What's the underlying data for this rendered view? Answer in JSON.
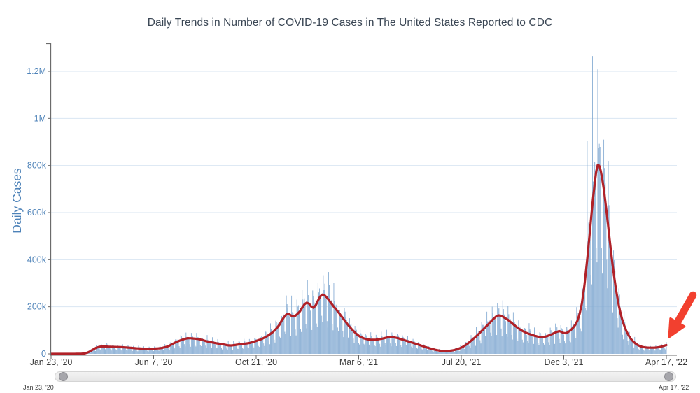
{
  "chart_data": {
    "type": "bar",
    "title": "Daily Trends in Number of COVID-19 Cases in The United States Reported to CDC",
    "xlabel": "",
    "ylabel": "Daily Cases",
    "ylim": [
      0,
      1300000
    ],
    "grid": "horizontal",
    "legend": "none",
    "x_range_days": 816,
    "x_tick_days": [
      0,
      136,
      272,
      408,
      544,
      680,
      816
    ],
    "x_tick_labels": [
      "Jan 23, '20",
      "Jun 7, '20",
      "Oct 21, '20",
      "Mar 6, '21",
      "Jul 20, '21",
      "Dec 3, '21",
      "Apr 17, '22"
    ],
    "y_tick_values": [
      0,
      200000,
      400000,
      600000,
      800000,
      1000000,
      1200000
    ],
    "y_tick_labels": [
      "0",
      "200k",
      "400k",
      "600k",
      "800k",
      "1M",
      "1.2M"
    ],
    "series": [
      {
        "name": "daily-cases-bars",
        "type": "bar",
        "color": "#83aad2",
        "note": "daily reported cases; synthesized from moving average x weekly reporting pattern",
        "weekly_pattern_sun_to_sat": [
          0.5,
          1.4,
          1.2,
          1.1,
          1.04,
          0.98,
          0.62
        ],
        "noise_amplitude": 0.2,
        "start_weekday_index": 4,
        "spike_overrides": {
          "711": 905000,
          "718": 1265000,
          "732": 1015000
        }
      },
      {
        "name": "seven-day-moving-average",
        "type": "line",
        "color": "#b02128",
        "width": 3.2,
        "keypoints_day_value": [
          [
            0,
            0
          ],
          [
            30,
            60
          ],
          [
            38,
            300
          ],
          [
            44,
            1500
          ],
          [
            48,
            5000
          ],
          [
            52,
            11000
          ],
          [
            56,
            19000
          ],
          [
            60,
            26000
          ],
          [
            64,
            30000
          ],
          [
            68,
            31500
          ],
          [
            73,
            31000
          ],
          [
            78,
            30000
          ],
          [
            84,
            29500
          ],
          [
            90,
            29000
          ],
          [
            96,
            28000
          ],
          [
            102,
            26500
          ],
          [
            108,
            25000
          ],
          [
            114,
            23200
          ],
          [
            120,
            22400
          ],
          [
            126,
            21500
          ],
          [
            131,
            21200
          ],
          [
            136,
            21800
          ],
          [
            141,
            23000
          ],
          [
            146,
            24500
          ],
          [
            151,
            28000
          ],
          [
            156,
            33000
          ],
          [
            161,
            42000
          ],
          [
            166,
            50000
          ],
          [
            171,
            56500
          ],
          [
            176,
            62000
          ],
          [
            181,
            66500
          ],
          [
            186,
            66000
          ],
          [
            191,
            64500
          ],
          [
            196,
            62500
          ],
          [
            201,
            58500
          ],
          [
            206,
            53500
          ],
          [
            211,
            50000
          ],
          [
            216,
            47000
          ],
          [
            221,
            44000
          ],
          [
            226,
            41500
          ],
          [
            231,
            38500
          ],
          [
            235,
            36000
          ],
          [
            239,
            35500
          ],
          [
            244,
            37500
          ],
          [
            249,
            40000
          ],
          [
            254,
            42500
          ],
          [
            259,
            44000
          ],
          [
            264,
            46500
          ],
          [
            269,
            51000
          ],
          [
            274,
            57000
          ],
          [
            279,
            62500
          ],
          [
            284,
            70500
          ],
          [
            289,
            80000
          ],
          [
            294,
            92000
          ],
          [
            299,
            108000
          ],
          [
            303,
            124000
          ],
          [
            306,
            142000
          ],
          [
            309,
            156000
          ],
          [
            312,
            167000
          ],
          [
            315,
            170500
          ],
          [
            318,
            163000
          ],
          [
            321,
            158500
          ],
          [
            324,
            162000
          ],
          [
            327,
            170000
          ],
          [
            330,
            180000
          ],
          [
            333,
            196000
          ],
          [
            336,
            210000
          ],
          [
            339,
            217000
          ],
          [
            342,
            213500
          ],
          [
            345,
            201000
          ],
          [
            348,
            195500
          ],
          [
            351,
            206000
          ],
          [
            354,
            226000
          ],
          [
            357,
            244000
          ],
          [
            360,
            252000
          ],
          [
            363,
            248000
          ],
          [
            366,
            238000
          ],
          [
            369,
            226000
          ],
          [
            372,
            213000
          ],
          [
            375,
            200000
          ],
          [
            380,
            181000
          ],
          [
            385,
            160000
          ],
          [
            390,
            139000
          ],
          [
            395,
            118500
          ],
          [
            400,
            100000
          ],
          [
            405,
            84500
          ],
          [
            410,
            72500
          ],
          [
            415,
            65500
          ],
          [
            420,
            61500
          ],
          [
            425,
            59500
          ],
          [
            430,
            60000
          ],
          [
            435,
            62000
          ],
          [
            440,
            65000
          ],
          [
            445,
            69000
          ],
          [
            450,
            71500
          ],
          [
            455,
            70000
          ],
          [
            460,
            66500
          ],
          [
            465,
            61500
          ],
          [
            470,
            56500
          ],
          [
            475,
            51500
          ],
          [
            480,
            46500
          ],
          [
            485,
            41500
          ],
          [
            490,
            36000
          ],
          [
            495,
            30500
          ],
          [
            500,
            25500
          ],
          [
            505,
            21000
          ],
          [
            510,
            17000
          ],
          [
            515,
            13800
          ],
          [
            519,
            12000
          ],
          [
            523,
            11600
          ],
          [
            527,
            12300
          ],
          [
            531,
            14000
          ],
          [
            535,
            16500
          ],
          [
            539,
            20000
          ],
          [
            543,
            25000
          ],
          [
            547,
            31500
          ],
          [
            551,
            40000
          ],
          [
            555,
            50000
          ],
          [
            559,
            61000
          ],
          [
            563,
            72000
          ],
          [
            567,
            84000
          ],
          [
            571,
            97000
          ],
          [
            575,
            110000
          ],
          [
            579,
            123000
          ],
          [
            583,
            136000
          ],
          [
            587,
            149000
          ],
          [
            590,
            158000
          ],
          [
            593,
            163500
          ],
          [
            596,
            162500
          ],
          [
            599,
            158000
          ],
          [
            602,
            152000
          ],
          [
            605,
            146000
          ],
          [
            608,
            139000
          ],
          [
            611,
            131000
          ],
          [
            614,
            123000
          ],
          [
            617,
            115000
          ],
          [
            620,
            108000
          ],
          [
            623,
            101500
          ],
          [
            626,
            96000
          ],
          [
            629,
            91000
          ],
          [
            632,
            87000
          ],
          [
            635,
            83500
          ],
          [
            638,
            80000
          ],
          [
            641,
            77000
          ],
          [
            644,
            74500
          ],
          [
            647,
            72500
          ],
          [
            650,
            71500
          ],
          [
            653,
            71800
          ],
          [
            656,
            73500
          ],
          [
            659,
            76500
          ],
          [
            662,
            80500
          ],
          [
            665,
            84500
          ],
          [
            668,
            89000
          ],
          [
            671,
            93500
          ],
          [
            674,
            96500
          ],
          [
            677,
            93000
          ],
          [
            680,
            88000
          ],
          [
            683,
            87500
          ],
          [
            686,
            93000
          ],
          [
            689,
            100000
          ],
          [
            692,
            110000
          ],
          [
            695,
            122000
          ],
          [
            698,
            140000
          ],
          [
            701,
            170000
          ],
          [
            704,
            215000
          ],
          [
            707,
            282000
          ],
          [
            709,
            340000
          ],
          [
            711,
            400000
          ],
          [
            713,
            465000
          ],
          [
            715,
            535000
          ],
          [
            717,
            605000
          ],
          [
            719,
            668000
          ],
          [
            721,
            725000
          ],
          [
            723,
            775000
          ],
          [
            725,
            803000
          ],
          [
            727,
            799000
          ],
          [
            729,
            777000
          ],
          [
            731,
            742000
          ],
          [
            733,
            700000
          ],
          [
            735,
            650000
          ],
          [
            737,
            595000
          ],
          [
            739,
            538000
          ],
          [
            741,
            480000
          ],
          [
            743,
            424000
          ],
          [
            745,
            371000
          ],
          [
            747,
            322000
          ],
          [
            749,
            278000
          ],
          [
            751,
            239000
          ],
          [
            753,
            205000
          ],
          [
            755,
            176000
          ],
          [
            757,
            151000
          ],
          [
            759,
            130000
          ],
          [
            761,
            112000
          ],
          [
            763,
            96500
          ],
          [
            765,
            83500
          ],
          [
            767,
            72500
          ],
          [
            769,
            63500
          ],
          [
            771,
            56000
          ],
          [
            773,
            49500
          ],
          [
            775,
            44000
          ],
          [
            777,
            39500
          ],
          [
            779,
            36000
          ],
          [
            781,
            33000
          ],
          [
            783,
            30800
          ],
          [
            785,
            29000
          ],
          [
            787,
            27800
          ],
          [
            789,
            27000
          ],
          [
            791,
            26500
          ],
          [
            793,
            26200
          ],
          [
            795,
            26000
          ],
          [
            797,
            26000
          ],
          [
            799,
            26200
          ],
          [
            801,
            26500
          ],
          [
            803,
            27000
          ],
          [
            805,
            27800
          ],
          [
            807,
            29000
          ],
          [
            809,
            30500
          ],
          [
            811,
            32300
          ],
          [
            813,
            34300
          ],
          [
            816,
            37000
          ]
        ]
      }
    ],
    "annotation": {
      "type": "arrow",
      "color": "#f2402f",
      "points_at": "latest data point near Apr 17, '22"
    },
    "colors": {
      "grid_line": "#d9e6f2",
      "y_axis_line": "#6b6b6b",
      "x_axis_line": "#8a8a8a",
      "tick_mark": "#666666",
      "y_tick_label": "#4d82b8",
      "x_tick_label": "#3c3c3c",
      "axis_title": "#4d82b8",
      "title": "#3a4654"
    }
  },
  "slider": {
    "start_label": "Jan 23, '20",
    "end_label": "Apr 17, '22"
  }
}
